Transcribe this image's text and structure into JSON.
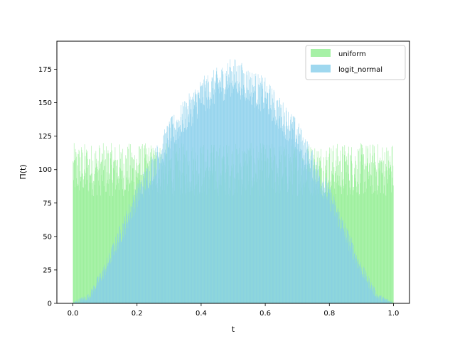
{
  "chart_data": {
    "type": "bar",
    "title": "",
    "xlabel": "t",
    "ylabel": "Π(t)",
    "xlim": [
      -0.05,
      1.05
    ],
    "ylim": [
      0,
      196
    ],
    "xticks": [
      "0.0",
      "0.2",
      "0.4",
      "0.6",
      "0.8",
      "1.0"
    ],
    "yticks": [
      "0",
      "25",
      "50",
      "75",
      "100",
      "125",
      "150",
      "175"
    ],
    "grid": false,
    "legend_position": "top-right",
    "bins": 1000,
    "bin_range": [
      0,
      1
    ],
    "series": [
      {
        "name": "uniform",
        "color": "#90ee90",
        "alpha": 0.8,
        "mean_count": 100,
        "count_range": [
          80,
          120
        ]
      },
      {
        "name": "logit_normal",
        "color": "#87ceeb",
        "alpha": 0.8,
        "profile": "logit-normal density, peak near t = 0.5",
        "peak_count": 180,
        "count_at_t": [
          [
            0.0,
            0
          ],
          [
            0.05,
            5
          ],
          [
            0.1,
            25
          ],
          [
            0.2,
            80
          ],
          [
            0.3,
            125
          ],
          [
            0.4,
            155
          ],
          [
            0.5,
            170
          ],
          [
            0.6,
            155
          ],
          [
            0.7,
            125
          ],
          [
            0.8,
            80
          ],
          [
            0.9,
            25
          ],
          [
            0.95,
            5
          ],
          [
            1.0,
            0
          ]
        ]
      }
    ]
  }
}
